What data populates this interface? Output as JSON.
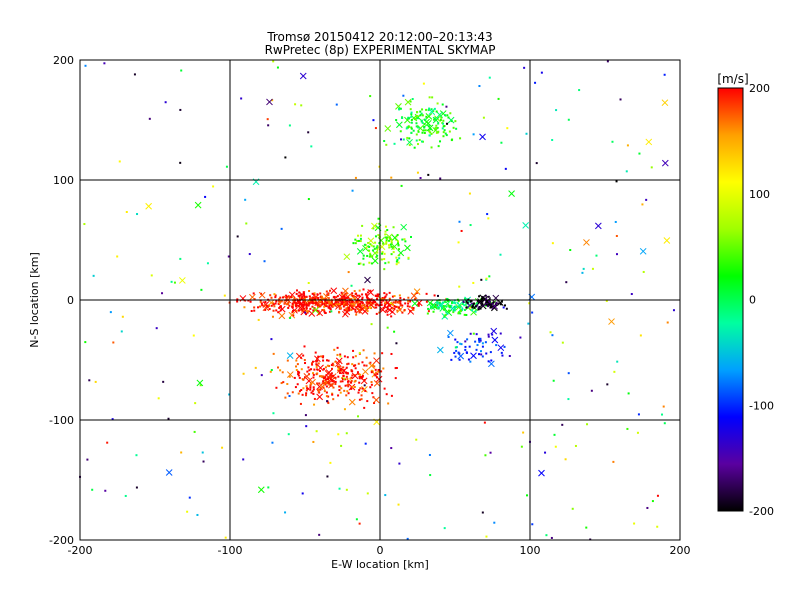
{
  "chart_data": {
    "type": "scatter",
    "title": "Tromsø 20150412 20:12:00–20:13:43",
    "subtitle": "RwPretec (8p) EXPERIMENTAL SKYMAP",
    "xlabel": "E-W location [km]",
    "ylabel": "N-S location [km]",
    "xlim": [
      -200,
      200
    ],
    "ylim": [
      -200,
      200
    ],
    "x_ticks": [
      "-200",
      "-100",
      "0",
      "100",
      "200"
    ],
    "y_ticks": [
      "-200",
      "-100",
      "0",
      "100",
      "200"
    ],
    "grid": true,
    "markers": [
      "dot",
      "x"
    ],
    "color_by": "velocity",
    "colorbar": {
      "label": "[m/s]",
      "range": [
        -200,
        200
      ],
      "ticks": [
        "200",
        "100",
        "0",
        "-100",
        "-200"
      ],
      "colors": [
        "#000000",
        "#5a00a0",
        "#0000ff",
        "#00a0ff",
        "#00ffa0",
        "#00ff00",
        "#a0ff00",
        "#ffff00",
        "#ffa000",
        "#ff0000"
      ],
      "position": "right"
    },
    "clusters": [
      {
        "x_range": [
          -110,
          50
        ],
        "y_range": [
          -15,
          10
        ],
        "velocity": 200,
        "count": 600,
        "note": "dense red band"
      },
      {
        "x_range": [
          -80,
          20
        ],
        "y_range": [
          -95,
          -35
        ],
        "velocity": 200,
        "count": 320
      },
      {
        "x_range": [
          0,
          60
        ],
        "y_range": [
          120,
          175
        ],
        "velocity": 20,
        "count": 150
      },
      {
        "x_range": [
          20,
          80
        ],
        "y_range": [
          -15,
          5
        ],
        "velocity": 0,
        "count": 120
      },
      {
        "x_range": [
          50,
          90
        ],
        "y_range": [
          -10,
          5
        ],
        "velocity": -200,
        "count": 80
      },
      {
        "x_range": [
          -30,
          30
        ],
        "y_range": [
          20,
          70
        ],
        "velocity": 50,
        "count": 120
      },
      {
        "x_range": [
          30,
          100
        ],
        "y_range": [
          -60,
          -20
        ],
        "velocity": -100,
        "count": 60
      },
      {
        "x_range": [
          -200,
          200
        ],
        "y_range": [
          -200,
          200
        ],
        "velocity": 50,
        "count": 300,
        "note": "sparse background"
      }
    ]
  }
}
